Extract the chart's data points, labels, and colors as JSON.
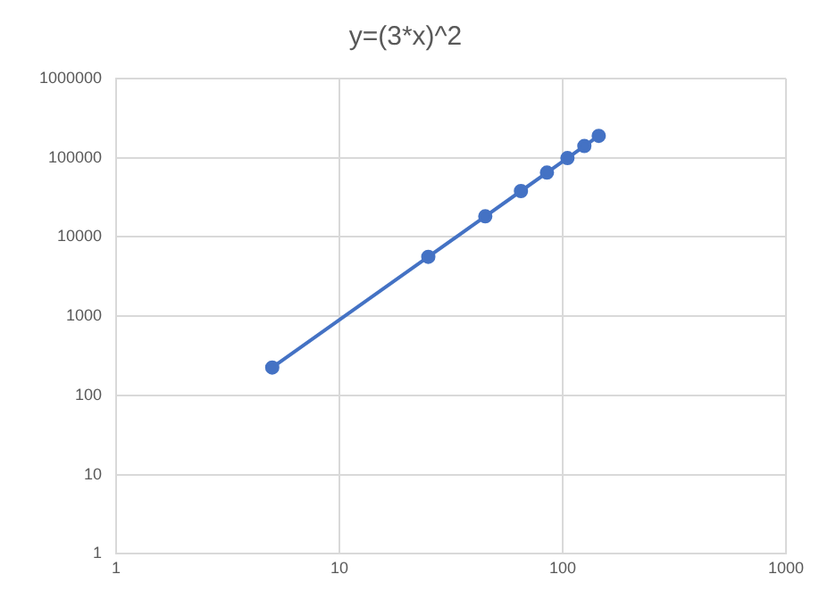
{
  "chart_data": {
    "type": "line",
    "title": "y=(3*x)^2",
    "x": [
      5,
      25,
      45,
      65,
      85,
      105,
      125,
      145
    ],
    "values": [
      225,
      5625,
      18225,
      38025,
      65025,
      99225,
      140625,
      189225
    ],
    "color": "#4472c4",
    "marker": "circle",
    "line_style": "solid",
    "log": "xy",
    "grid": true,
    "legend": false,
    "xlim": [
      1,
      1000
    ],
    "xticks": [
      1,
      10,
      100,
      1000
    ],
    "ylim": [
      1,
      1000000
    ],
    "yticks": [
      1,
      10,
      100,
      1000,
      10000,
      100000,
      1000000
    ]
  }
}
